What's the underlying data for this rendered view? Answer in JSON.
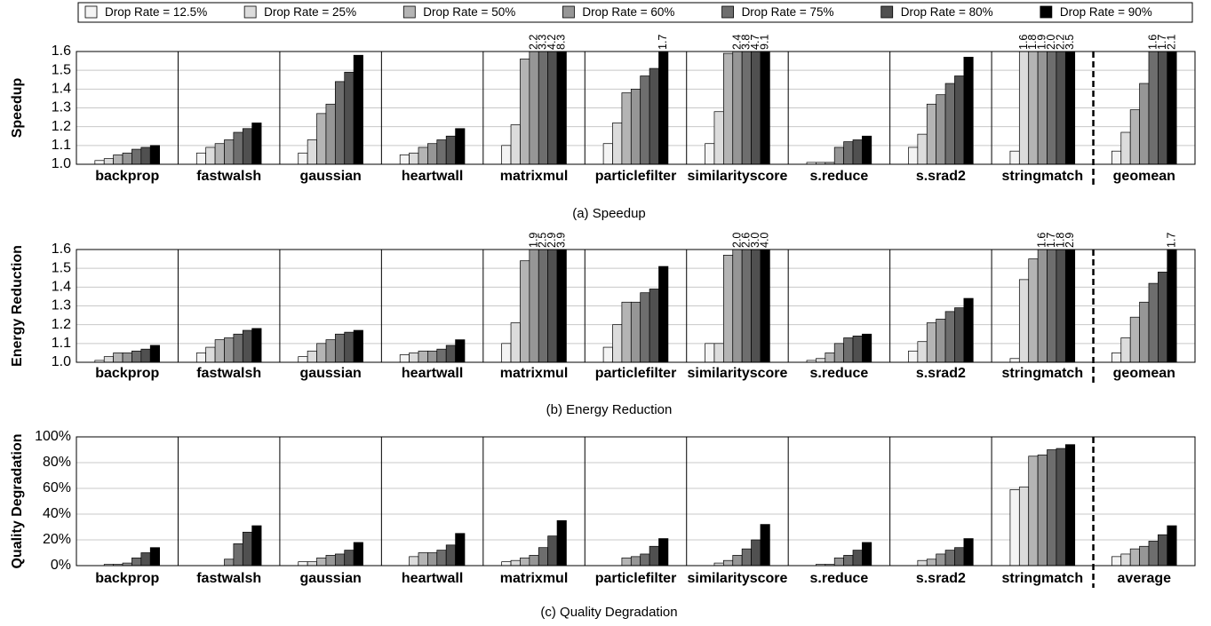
{
  "chart_data": [
    {
      "type": "bar",
      "ylabel": "Speedup",
      "caption": "(a) Speedup",
      "categories": [
        "backprop",
        "fastwalsh",
        "gaussian",
        "heartwall",
        "matrixmul",
        "particlefilter",
        "similarityscore",
        "s.reduce",
        "s.srad2",
        "stringmatch",
        "geomean"
      ],
      "ylim": [
        1.0,
        1.6
      ],
      "yticks": [
        {
          "value": 1.0,
          "label": "1.0"
        },
        1.1,
        1.2,
        1.3,
        1.4,
        1.5,
        1.6
      ],
      "grid": true,
      "series": [
        {
          "name": "Drop Rate = 12.5%",
          "color": "#f4f4f4",
          "values": [
            1.02,
            1.06,
            1.06,
            1.05,
            1.1,
            1.11,
            1.11,
            1.01,
            1.09,
            1.07,
            1.07
          ]
        },
        {
          "name": "Drop Rate = 25%",
          "color": "#dcdcdc",
          "values": [
            1.03,
            1.09,
            1.13,
            1.06,
            1.21,
            1.22,
            1.28,
            1.01,
            1.16,
            1.6,
            1.17
          ],
          "value_labels": [
            null,
            null,
            null,
            null,
            null,
            null,
            null,
            null,
            null,
            "1.6",
            null
          ]
        },
        {
          "name": "Drop Rate = 50%",
          "color": "#b4b4b4",
          "values": [
            1.05,
            1.11,
            1.27,
            1.09,
            1.56,
            1.38,
            1.59,
            1.01,
            1.32,
            1.8,
            1.29
          ],
          "value_labels": [
            null,
            null,
            null,
            null,
            null,
            null,
            null,
            null,
            null,
            "1.8",
            null
          ]
        },
        {
          "name": "Drop Rate = 60%",
          "color": "#969696",
          "values": [
            1.06,
            1.13,
            1.32,
            1.11,
            2.2,
            1.4,
            2.4,
            1.09,
            1.37,
            1.9,
            1.43
          ],
          "value_labels": [
            null,
            null,
            null,
            null,
            "2.2",
            null,
            "2.4",
            null,
            null,
            "1.9",
            null
          ]
        },
        {
          "name": "Drop Rate = 75%",
          "color": "#6e6e6e",
          "values": [
            1.08,
            1.17,
            1.44,
            1.13,
            3.3,
            1.47,
            3.8,
            1.12,
            1.43,
            2,
            1.6
          ],
          "value_labels": [
            null,
            null,
            null,
            null,
            "3.3",
            null,
            "3.8",
            null,
            null,
            "2.0",
            "1.6"
          ]
        },
        {
          "name": "Drop Rate = 80%",
          "color": "#505050",
          "values": [
            1.09,
            1.19,
            1.49,
            1.15,
            4.2,
            1.51,
            4.7,
            1.13,
            1.47,
            2.2,
            1.7
          ],
          "value_labels": [
            null,
            null,
            null,
            null,
            "4.2",
            null,
            "4.7",
            null,
            null,
            "2.2",
            "1.7"
          ]
        },
        {
          "name": "Drop Rate = 90%",
          "color": "#000000",
          "values": [
            1.1,
            1.22,
            1.58,
            1.19,
            8.3,
            1.7,
            9.1,
            1.15,
            1.57,
            3.5,
            2.1
          ],
          "value_labels": [
            null,
            null,
            null,
            null,
            "8.3",
            "1.7",
            "9.1",
            null,
            null,
            "3.5",
            "2.1"
          ]
        }
      ]
    },
    {
      "type": "bar",
      "ylabel": "Energy Reduction",
      "caption": "(b) Energy Reduction",
      "categories": [
        "backprop",
        "fastwalsh",
        "gaussian",
        "heartwall",
        "matrixmul",
        "particlefilter",
        "similarityscore",
        "s.reduce",
        "s.srad2",
        "stringmatch",
        "geomean"
      ],
      "ylim": [
        1.0,
        1.6
      ],
      "yticks": [
        {
          "value": 1.0,
          "label": "1.0"
        },
        1.1,
        1.2,
        1.3,
        1.4,
        1.5,
        1.6
      ],
      "grid": true,
      "series": [
        {
          "color": "#f4f4f4",
          "values": [
            1.01,
            1.05,
            1.03,
            1.04,
            1.1,
            1.08,
            1.1,
            1.01,
            1.06,
            1.02,
            1.05
          ]
        },
        {
          "color": "#dcdcdc",
          "values": [
            1.03,
            1.08,
            1.06,
            1.05,
            1.21,
            1.2,
            1.1,
            1.02,
            1.11,
            1.44,
            1.13
          ]
        },
        {
          "color": "#b4b4b4",
          "values": [
            1.05,
            1.12,
            1.1,
            1.06,
            1.54,
            1.32,
            1.57,
            1.05,
            1.21,
            1.55,
            1.24
          ]
        },
        {
          "color": "#969696",
          "values": [
            1.05,
            1.13,
            1.12,
            1.06,
            1.9,
            1.32,
            2,
            1.1,
            1.23,
            1.6,
            1.32
          ],
          "value_labels": [
            null,
            null,
            null,
            null,
            "1.9",
            null,
            "2.0",
            null,
            null,
            "1.6",
            null
          ]
        },
        {
          "color": "#6e6e6e",
          "values": [
            1.06,
            1.15,
            1.15,
            1.07,
            2.5,
            1.37,
            2.6,
            1.13,
            1.27,
            1.7,
            1.42
          ],
          "value_labels": [
            null,
            null,
            null,
            null,
            "2.5",
            null,
            "2.6",
            null,
            null,
            "1.7",
            null
          ]
        },
        {
          "color": "#505050",
          "values": [
            1.07,
            1.17,
            1.16,
            1.09,
            2.9,
            1.39,
            3,
            1.14,
            1.29,
            1.8,
            1.48
          ],
          "value_labels": [
            null,
            null,
            null,
            null,
            "2.9",
            null,
            "3.0",
            null,
            null,
            "1.8",
            null
          ]
        },
        {
          "color": "#000000",
          "values": [
            1.09,
            1.18,
            1.17,
            1.12,
            3.9,
            1.51,
            4,
            1.15,
            1.34,
            2.9,
            1.7
          ],
          "value_labels": [
            null,
            null,
            null,
            null,
            "3.9",
            null,
            "4.0",
            null,
            null,
            "2.9",
            "1.7"
          ]
        }
      ]
    },
    {
      "type": "bar",
      "ylabel": "Quality Degradation",
      "caption": "(c) Quality Degradation",
      "categories": [
        "backprop",
        "fastwalsh",
        "gaussian",
        "heartwall",
        "matrixmul",
        "particlefilter",
        "similarityscore",
        "s.reduce",
        "s.srad2",
        "stringmatch",
        "average"
      ],
      "ylim": [
        0,
        100
      ],
      "yticks": [
        {
          "value": 0,
          "label": "0%"
        },
        {
          "value": 20,
          "label": "20%"
        },
        {
          "value": 40,
          "label": "40%"
        },
        {
          "value": 60,
          "label": "60%"
        },
        {
          "value": 80,
          "label": "80%"
        },
        {
          "value": 100,
          "label": "100%"
        }
      ],
      "grid": true,
      "series": [
        {
          "color": "#f4f4f4",
          "values": [
            0,
            0,
            3,
            0,
            3,
            0,
            0,
            0,
            0,
            59,
            7
          ]
        },
        {
          "color": "#dcdcdc",
          "values": [
            1,
            0,
            3,
            7,
            4,
            0,
            2,
            1,
            4,
            61,
            9
          ]
        },
        {
          "color": "#b4b4b4",
          "values": [
            1,
            0,
            6,
            10,
            6,
            6,
            4,
            1,
            5,
            85,
            13
          ]
        },
        {
          "color": "#969696",
          "values": [
            2,
            5,
            8,
            10,
            8,
            7,
            8,
            6,
            9,
            86,
            15
          ]
        },
        {
          "color": "#6e6e6e",
          "values": [
            6,
            17,
            9,
            12,
            14,
            9,
            13,
            8,
            12,
            90,
            19
          ]
        },
        {
          "color": "#505050",
          "values": [
            10,
            26,
            12,
            16,
            23,
            15,
            20,
            12,
            14,
            91,
            24
          ]
        },
        {
          "color": "#000000",
          "values": [
            14,
            31,
            18,
            25,
            35,
            21,
            32,
            18,
            21,
            94,
            31
          ]
        }
      ]
    }
  ]
}
